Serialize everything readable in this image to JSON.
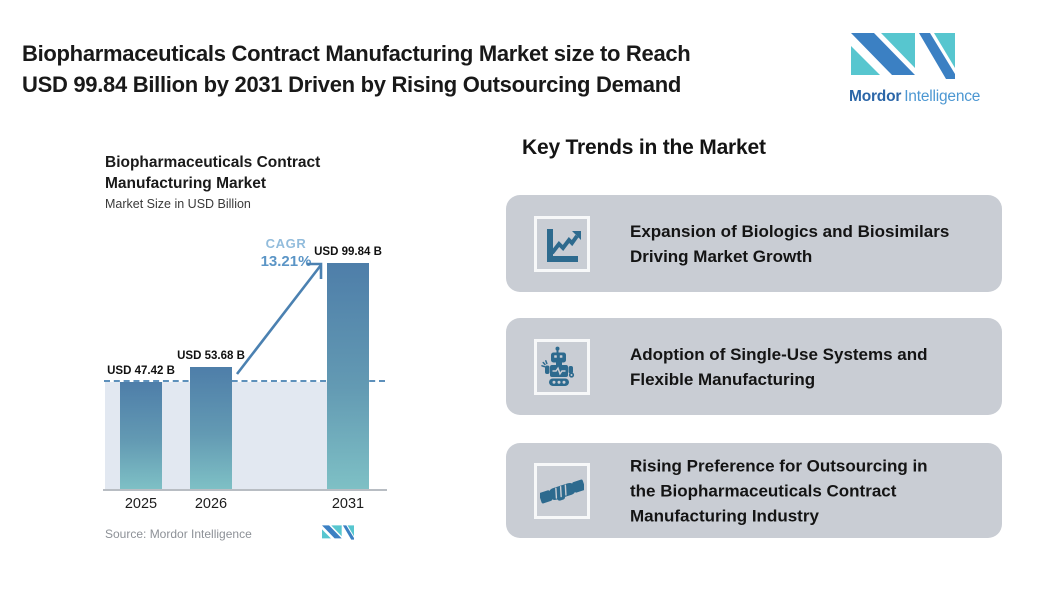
{
  "page": {
    "title_lines": [
      "Biopharmaceuticals Contract Manufacturing Market size to Reach",
      "USD 99.84 Billion by 2031 Driven by Rising Outsourcing Demand"
    ]
  },
  "brand": {
    "name_primary": "Mordor",
    "name_secondary": "Intelligence"
  },
  "chart_data": {
    "type": "bar",
    "title": "Biopharmaceuticals Contract Manufacturing Market",
    "title_lines": [
      "Biopharmaceuticals Contract",
      "Manufacturing Market"
    ],
    "subtitle": "Market Size in USD Billion",
    "categories": [
      "2025",
      "2026",
      "2031"
    ],
    "values": [
      47.42,
      53.68,
      99.84
    ],
    "data_labels": [
      "USD 47.42 B",
      "USD 53.68 B",
      "USD 99.84 B"
    ],
    "unit": "USD Billion",
    "ylim": [
      0,
      100
    ],
    "grid": false,
    "legend": "none",
    "annotations": {
      "cagr_label": "CAGR",
      "cagr_value": "13.21%",
      "reference_line": "dashed horizontal line at 2025 market-size level",
      "arrow": "up-right arrow from 2026 bar to 2031 bar"
    },
    "source": "Source: Mordor Intelligence"
  },
  "trends": {
    "heading": "Key Trends in the Market",
    "cards": [
      {
        "icon": "growth-chart",
        "lines": [
          "Expansion of Biologics and Biosimilars",
          "Driving Market Growth"
        ]
      },
      {
        "icon": "robot",
        "lines": [
          "Adoption of Single-Use Systems and",
          "Flexible Manufacturing"
        ]
      },
      {
        "icon": "handshake",
        "lines": [
          "Rising Preference for Outsourcing in",
          "the Biopharmaceuticals Contract",
          "Manufacturing Industry"
        ]
      }
    ]
  },
  "colors": {
    "bar_top": "#4e7ea9",
    "bar_bottom": "#7ec0c5",
    "shaded_band": "#e2e8f1",
    "dashed_line": "#5d90bb",
    "arrow": "#4b81b1",
    "cagr_label": "#92bcdc",
    "cagr_value": "#5b95c6",
    "card_background": "#c9cdd4",
    "icon": "#2d6a8e",
    "logo_blue": "#3b80c3",
    "logo_teal": "#57c6cf"
  }
}
